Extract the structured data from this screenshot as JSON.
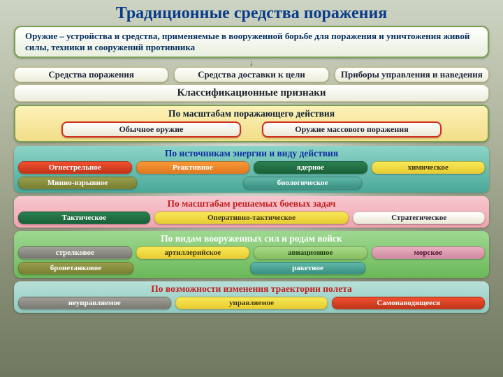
{
  "title": "Традиционные средства поражения",
  "definition": "Оружие – устройства и средства, применяемые в вооруженной борьбе для поражения и уничтожения живой силы, техники и сооружений противника",
  "top": {
    "a": "Средства поражения",
    "b": "Средства доставки к цели",
    "c": "Приборы управления и наведения"
  },
  "class_header": "Классификационные признаки",
  "s1": {
    "hd": "По масштабам поражающего действия",
    "a": "Обычное оружие",
    "b": "Оружие массового поражения"
  },
  "s2": {
    "hd": "По источникам энергии и виду действия",
    "r1": {
      "a": "Огнестрельное",
      "b": "Реактивное",
      "c": "ядерное",
      "d": "химическое"
    },
    "r2": {
      "a": "Минно-взрывное",
      "b": "биологическое"
    }
  },
  "s3": {
    "hd": "По масштабам решаемых боевых задач",
    "a": "Тактическое",
    "b": "Оперативно-тактическое",
    "c": "Стратегическое"
  },
  "s4": {
    "hd": "По видам вооруженных сил и родам войск",
    "r1": {
      "a": "стрелковое",
      "b": "артиллерийское",
      "c": "авиационное",
      "d": "морское"
    },
    "r2": {
      "a": "бронетанковое",
      "b": "ракетное"
    }
  },
  "s5": {
    "hd": "По возможности изменения траектории полета",
    "a": "неуправляемое",
    "b": "управляемое",
    "c": "Самонаводящееся"
  }
}
